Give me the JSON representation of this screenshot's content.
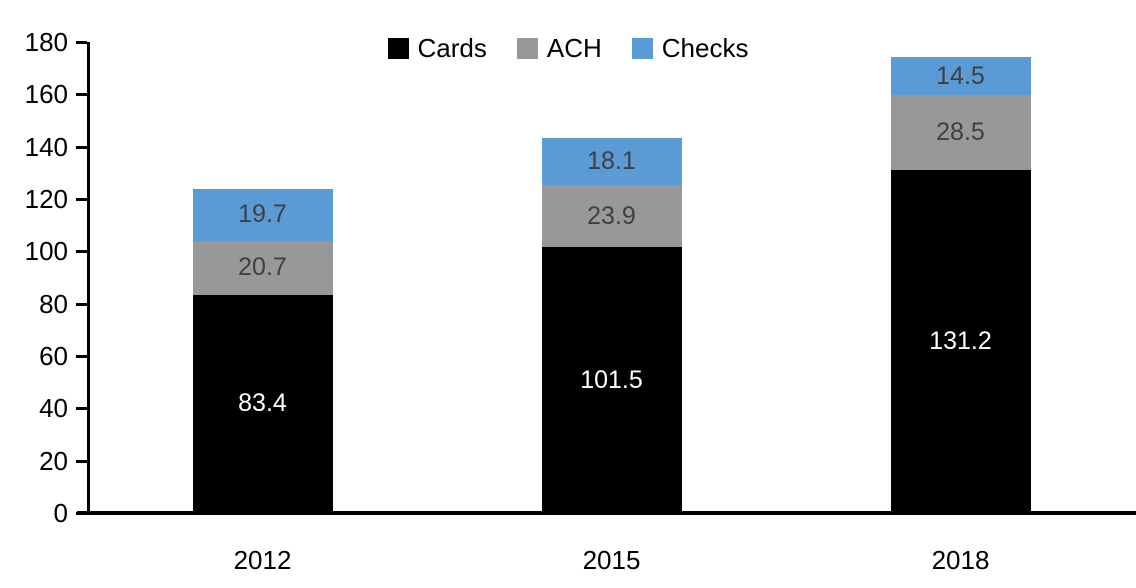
{
  "chart_data": {
    "type": "bar",
    "stacked": true,
    "title": "",
    "xlabel": "",
    "ylabel": "",
    "categories": [
      "2012",
      "2015",
      "2018"
    ],
    "series": [
      {
        "name": "Cards",
        "values": [
          83.4,
          101.5,
          131.2
        ],
        "color": "#000000",
        "label_color": "#FFFFFF"
      },
      {
        "name": "ACH",
        "values": [
          20.7,
          23.9,
          28.5
        ],
        "color": "#989898",
        "label_color": "#404040"
      },
      {
        "name": "Checks",
        "values": [
          19.7,
          18.1,
          14.5
        ],
        "color": "#5B9BD5",
        "label_color": "#404040"
      }
    ],
    "totals": [
      123.8,
      143.5,
      174.2
    ],
    "ylim": [
      0,
      180
    ],
    "ytick_step": 20,
    "ytick_labels": [
      "0",
      "20",
      "40",
      "60",
      "80",
      "100",
      "120",
      "140",
      "160",
      "180"
    ],
    "grid": false,
    "legend_position": "top-center",
    "data_labels_decimals": 1
  }
}
